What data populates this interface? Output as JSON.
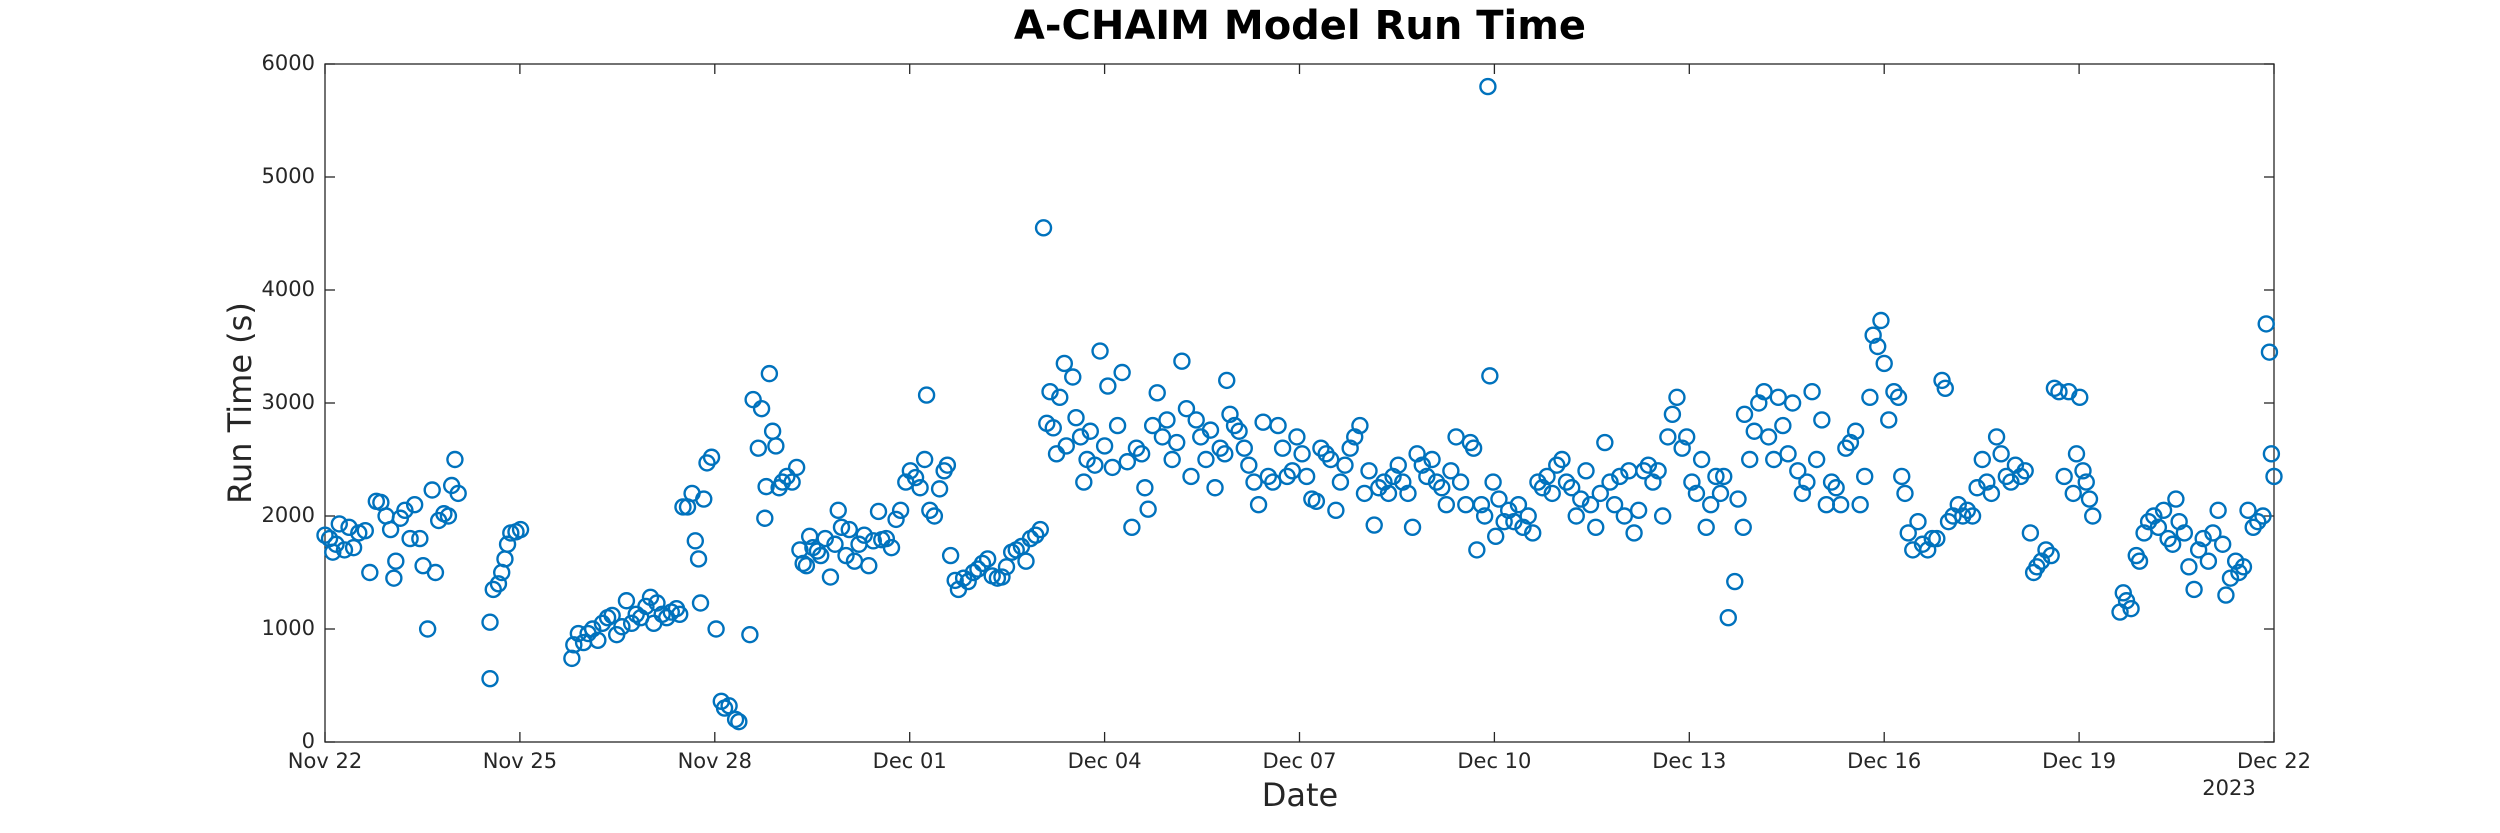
{
  "chart_data": {
    "type": "scatter",
    "title": "A-CHAIM Model Run Time",
    "xlabel": "Date",
    "ylabel": "Run Time (s)",
    "x_year_label": "2023",
    "color": "#0072BD",
    "xlim": [
      0,
      30
    ],
    "ylim": [
      0,
      6000
    ],
    "xticks": [
      {
        "value": 0,
        "label": "Nov 22"
      },
      {
        "value": 3,
        "label": "Nov 25"
      },
      {
        "value": 6,
        "label": "Nov 28"
      },
      {
        "value": 9,
        "label": "Dec 01"
      },
      {
        "value": 12,
        "label": "Dec 04"
      },
      {
        "value": 15,
        "label": "Dec 07"
      },
      {
        "value": 18,
        "label": "Dec 10"
      },
      {
        "value": 21,
        "label": "Dec 13"
      },
      {
        "value": 24,
        "label": "Dec 16"
      },
      {
        "value": 27,
        "label": "Dec 19"
      },
      {
        "value": 30,
        "label": "Dec 22"
      }
    ],
    "yticks": [
      0,
      1000,
      2000,
      3000,
      4000,
      5000,
      6000
    ],
    "x": [
      0,
      0.07,
      0.12,
      0.17,
      0.22,
      0.3,
      0.37,
      0.44,
      0.52,
      0.62,
      0.69,
      0.79,
      0.86,
      0.94,
      1.01,
      1.06,
      1.09,
      1.16,
      1.23,
      1.31,
      1.38,
      1.46,
      1.51,
      1.58,
      1.65,
      1.7,
      1.75,
      1.83,
      1.9,
      1.95,
      2.0,
      2.05,
      2.54,
      2.54,
      2.59,
      2.67,
      2.72,
      2.77,
      2.81,
      2.86,
      2.94,
      3.01,
      3.8,
      3.83,
      3.9,
      3.98,
      4.05,
      4.12,
      4.2,
      4.27,
      4.35,
      4.42,
      4.49,
      4.57,
      4.64,
      4.72,
      4.79,
      4.86,
      4.94,
      5.01,
      5.06,
      5.11,
      5.19,
      5.26,
      5.33,
      5.41,
      5.46,
      5.51,
      5.58,
      5.65,
      5.7,
      5.75,
      5.78,
      5.83,
      5.88,
      5.95,
      6.02,
      6.1,
      6.15,
      6.22,
      6.32,
      6.37,
      6.54,
      6.59,
      6.67,
      6.72,
      6.77,
      6.79,
      6.84,
      6.89,
      6.94,
      6.99,
      7.04,
      7.11,
      7.19,
      7.26,
      7.31,
      7.36,
      7.41,
      7.46,
      7.51,
      7.58,
      7.63,
      7.7,
      7.78,
      7.85,
      7.9,
      7.95,
      8.02,
      8.07,
      8.15,
      8.22,
      8.3,
      8.37,
      8.44,
      8.52,
      8.57,
      8.64,
      8.72,
      8.79,
      8.86,
      8.94,
      9.01,
      9.09,
      9.16,
      9.23,
      9.26,
      9.31,
      9.38,
      9.46,
      9.53,
      9.58,
      9.63,
      9.7,
      9.75,
      9.83,
      9.9,
      9.98,
      10.05,
      10.12,
      10.2,
      10.27,
      10.35,
      10.42,
      10.49,
      10.57,
      10.64,
      10.72,
      10.79,
      10.86,
      10.94,
      11.01,
      11.06,
      11.11,
      11.16,
      11.21,
      11.26,
      11.31,
      11.38,
      11.41,
      11.51,
      11.56,
      11.63,
      11.68,
      11.73,
      11.78,
      11.85,
      11.93,
      12.0,
      12.05,
      12.12,
      12.2,
      12.27,
      12.35,
      12.42,
      12.49,
      12.57,
      12.62,
      12.67,
      12.74,
      12.81,
      12.89,
      12.96,
      13.04,
      13.11,
      13.19,
      13.26,
      13.33,
      13.41,
      13.48,
      13.56,
      13.63,
      13.7,
      13.78,
      13.85,
      13.88,
      13.93,
      14.0,
      14.07,
      14.15,
      14.22,
      14.3,
      14.37,
      14.44,
      14.52,
      14.59,
      14.67,
      14.74,
      14.81,
      14.89,
      14.96,
      15.04,
      15.11,
      15.19,
      15.26,
      15.33,
      15.41,
      15.48,
      15.56,
      15.63,
      15.7,
      15.78,
      15.85,
      15.93,
      16.0,
      16.07,
      16.15,
      16.22,
      16.3,
      16.37,
      16.44,
      16.52,
      16.59,
      16.67,
      16.74,
      16.81,
      16.89,
      16.96,
      17.04,
      17.11,
      17.19,
      17.26,
      17.33,
      17.41,
      17.48,
      17.56,
      17.63,
      17.68,
      17.73,
      17.8,
      17.85,
      17.9,
      17.93,
      17.98,
      18.02,
      18.07,
      18.15,
      18.22,
      18.3,
      18.37,
      18.44,
      18.52,
      18.59,
      18.67,
      18.74,
      18.81,
      18.89,
      18.96,
      19.04,
      19.11,
      19.19,
      19.26,
      19.33,
      19.41,
      19.48,
      19.56,
      19.63,
      19.7,
      19.78,
      19.85,
      19.93,
      20.0,
      20.07,
      20.15,
      20.22,
      20.3,
      20.37,
      20.44,
      20.52,
      20.59,
      20.67,
      20.74,
      20.81,
      20.89,
      20.96,
      21.04,
      21.11,
      21.19,
      21.26,
      21.33,
      21.41,
      21.48,
      21.53,
      21.6,
      21.7,
      21.75,
      21.83,
      21.85,
      21.93,
      22.0,
      22.07,
      22.15,
      22.22,
      22.3,
      22.37,
      22.44,
      22.52,
      22.59,
      22.67,
      22.74,
      22.81,
      22.89,
      22.96,
      23.04,
      23.11,
      23.19,
      23.26,
      23.33,
      23.41,
      23.48,
      23.56,
      23.63,
      23.7,
      23.78,
      23.83,
      23.9,
      23.95,
      24.0,
      24.07,
      24.15,
      24.22,
      24.27,
      24.32,
      24.37,
      24.44,
      24.52,
      24.59,
      24.67,
      24.74,
      24.81,
      24.89,
      24.94,
      24.99,
      25.06,
      25.14,
      25.21,
      25.28,
      25.36,
      25.43,
      25.51,
      25.58,
      25.65,
      25.73,
      25.8,
      25.88,
      25.95,
      26.02,
      26.1,
      26.17,
      26.25,
      26.3,
      26.35,
      26.42,
      26.49,
      26.57,
      26.62,
      26.69,
      26.77,
      26.84,
      26.91,
      26.96,
      27.01,
      27.06,
      27.11,
      27.16,
      27.21,
      27.63,
      27.68,
      27.73,
      27.8,
      27.88,
      27.93,
      28.0,
      28.07,
      28.15,
      28.22,
      28.3,
      28.37,
      28.44,
      28.49,
      28.54,
      28.62,
      28.69,
      28.77,
      28.84,
      28.91,
      28.99,
      29.06,
      29.14,
      29.21,
      29.26,
      29.33,
      29.41,
      29.46,
      29.53,
      29.6,
      29.68,
      29.75,
      29.83,
      29.88,
      29.93,
      29.96,
      30.0
    ],
    "values": [
      1830,
      1800,
      1680,
      1750,
      1930,
      1700,
      1900,
      1720,
      1850,
      1870,
      1500,
      2130,
      2120,
      2000,
      1880,
      1450,
      1600,
      1980,
      2050,
      1800,
      2100,
      1800,
      1560,
      1000,
      2230,
      1500,
      1960,
      2020,
      2000,
      2270,
      2500,
      2200,
      1060,
      560,
      1350,
      1400,
      1500,
      1620,
      1750,
      1850,
      1860,
      1880,
      740,
      860,
      960,
      880,
      960,
      1000,
      900,
      1050,
      1100,
      1120,
      950,
      1020,
      1250,
      1050,
      1130,
      1100,
      1200,
      1280,
      1050,
      1230,
      1130,
      1100,
      1150,
      1180,
      1130,
      2080,
      2080,
      2200,
      1780,
      1620,
      1230,
      2150,
      2470,
      2520,
      1000,
      360,
      300,
      320,
      200,
      180,
      950,
      3030,
      2600,
      2950,
      1980,
      2260,
      3260,
      2750,
      2620,
      2250,
      2300,
      2350,
      2300,
      2430,
      1700,
      1580,
      1560,
      1820,
      1720,
      1690,
      1650,
      1800,
      1460,
      1750,
      2050,
      1900,
      1650,
      1880,
      1600,
      1750,
      1830,
      1560,
      1780,
      2040,
      1790,
      1800,
      1720,
      1970,
      2050,
      2300,
      2400,
      2340,
      2250,
      2500,
      3070,
      2050,
      2000,
      2240,
      2400,
      2450,
      1650,
      1430,
      1350,
      1450,
      1420,
      1500,
      1530,
      1580,
      1620,
      1470,
      1450,
      1460,
      1550,
      1680,
      1700,
      1730,
      1600,
      1800,
      1830,
      1880,
      4550,
      2820,
      3100,
      2780,
      2550,
      3050,
      3350,
      2620,
      3230,
      2870,
      2700,
      2300,
      2500,
      2750,
      2450,
      3460,
      2620,
      3150,
      2430,
      2800,
      3270,
      2480,
      1900,
      2600,
      2550,
      2250,
      2060,
      2800,
      3090,
      2700,
      2850,
      2500,
      2650,
      3370,
      2950,
      2350,
      2850,
      2700,
      2500,
      2760,
      2250,
      2600,
      2550,
      3200,
      2900,
      2800,
      2750,
      2600,
      2450,
      2300,
      2100,
      2830,
      2350,
      2300,
      2800,
      2600,
      2350,
      2400,
      2700,
      2550,
      2350,
      2150,
      2130,
      2600,
      2550,
      2500,
      2050,
      2300,
      2450,
      2600,
      2700,
      2800,
      2200,
      2400,
      1920,
      2250,
      2300,
      2200,
      2350,
      2450,
      2300,
      2200,
      1900,
      2550,
      2450,
      2350,
      2500,
      2300,
      2250,
      2100,
      2400,
      2700,
      2300,
      2100,
      2650,
      2600,
      1700,
      2100,
      2000,
      5800,
      3240,
      2300,
      1820,
      2150,
      1950,
      2050,
      1950,
      2100,
      1900,
      2000,
      1850,
      2300,
      2250,
      2350,
      2200,
      2450,
      2500,
      2300,
      2250,
      2000,
      2150,
      2400,
      2100,
      1900,
      2200,
      2650,
      2300,
      2100,
      2350,
      2000,
      2400,
      1850,
      2050,
      2400,
      2450,
      2300,
      2400,
      2000,
      2700,
      2900,
      3050,
      2600,
      2700,
      2300,
      2200,
      2500,
      1900,
      2100,
      2350,
      2200,
      2350,
      1100,
      1420,
      2150,
      1900,
      2900,
      2500,
      2750,
      3000,
      3100,
      2700,
      2500,
      3050,
      2800,
      2550,
      3000,
      2400,
      2200,
      2300,
      3100,
      2500,
      2850,
      2100,
      2300,
      2250,
      2100,
      2600,
      2650,
      2750,
      2100,
      2350,
      3050,
      3600,
      3500,
      3730,
      3350,
      2850,
      3100,
      3050,
      2350,
      2200,
      1850,
      1700,
      1950,
      1750,
      1700,
      1800,
      1800,
      3200,
      3130,
      1950,
      2000,
      2100,
      2000,
      2050,
      2000,
      2250,
      2500,
      2300,
      2200,
      2700,
      2550,
      2350,
      2300,
      2450,
      2350,
      2400,
      1850,
      1500,
      1550,
      1600,
      1700,
      1650,
      3130,
      3100,
      2350,
      3100,
      2200,
      2550,
      3050,
      2400,
      2300,
      2150,
      2000,
      1150,
      1320,
      1250,
      1180,
      1650,
      1600,
      1850,
      1950,
      2000,
      1900,
      2050,
      1800,
      1750,
      2150,
      1950,
      1850,
      1550,
      1350,
      1700,
      1800,
      1600,
      1850,
      2050,
      1750,
      1300,
      1450,
      1600,
      1500,
      1550,
      2050,
      1900,
      1950,
      2000,
      3700,
      3450,
      2550,
      2350
    ]
  }
}
